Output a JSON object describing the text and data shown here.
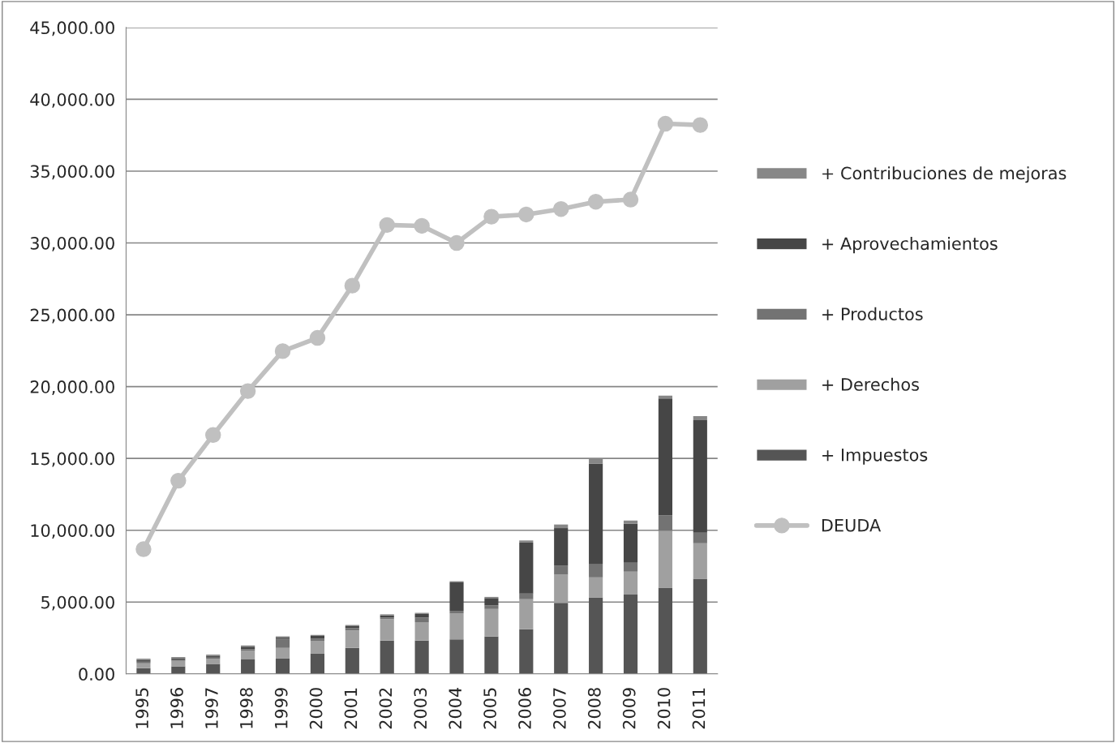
{
  "chart_data": {
    "type": "bar",
    "stacked": true,
    "categories": [
      "1995",
      "1996",
      "1997",
      "1998",
      "1999",
      "2000",
      "2001",
      "2002",
      "2003",
      "2004",
      "2005",
      "2006",
      "2007",
      "2008",
      "2009",
      "2010",
      "2011"
    ],
    "series": [
      {
        "name": "+ Impuestos",
        "color": "#555555",
        "values": [
          400,
          530,
          700,
          1000,
          1090,
          1430,
          1810,
          2320,
          2320,
          2410,
          2600,
          3110,
          4950,
          5330,
          5520,
          6010,
          6630
        ]
      },
      {
        "name": "+ Derechos",
        "color": "#a0a0a0",
        "values": [
          340,
          380,
          340,
          600,
          720,
          850,
          1210,
          1490,
          1280,
          1790,
          1920,
          2090,
          1960,
          1390,
          1600,
          3940,
          2470
        ]
      },
      {
        "name": "+ Productos",
        "color": "#737373",
        "values": [
          110,
          90,
          90,
          130,
          640,
          170,
          170,
          110,
          320,
          190,
          250,
          400,
          640,
          900,
          620,
          1090,
          730
        ]
      },
      {
        "name": "+ Aprovechamientos",
        "color": "#464646",
        "values": [
          130,
          90,
          130,
          170,
          90,
          190,
          130,
          150,
          250,
          1980,
          510,
          3540,
          2600,
          7020,
          2730,
          8140,
          7830
        ]
      },
      {
        "name": "+ Contribuciones de mejoras",
        "color": "#878787",
        "values": [
          80,
          80,
          80,
          80,
          80,
          80,
          80,
          80,
          80,
          80,
          80,
          150,
          250,
          320,
          210,
          190,
          280
        ]
      },
      {
        "name": "DEUDA",
        "type": "line",
        "color": "#c0c0c0",
        "marker": "circle",
        "values": [
          8680,
          13450,
          16630,
          19690,
          22470,
          23390,
          27030,
          31250,
          31190,
          30000,
          31830,
          31980,
          32360,
          32870,
          33020,
          38300,
          38210
        ]
      }
    ],
    "ylim": [
      0,
      45000
    ],
    "yticks": [
      {
        "value": 0,
        "label": "0.00"
      },
      {
        "value": 5000,
        "label": "5,000.00"
      },
      {
        "value": 10000,
        "label": "10,000.00"
      },
      {
        "value": 15000,
        "label": "15,000.00"
      },
      {
        "value": 20000,
        "label": "20,000.00"
      },
      {
        "value": 25000,
        "label": "25,000.00"
      },
      {
        "value": 30000,
        "label": "30,000.00"
      },
      {
        "value": 35000,
        "label": "35,000.00"
      },
      {
        "value": 40000,
        "label": "40,000.00"
      },
      {
        "value": 45000,
        "label": "45,000.00"
      }
    ],
    "grid": "y",
    "legend": "right"
  }
}
